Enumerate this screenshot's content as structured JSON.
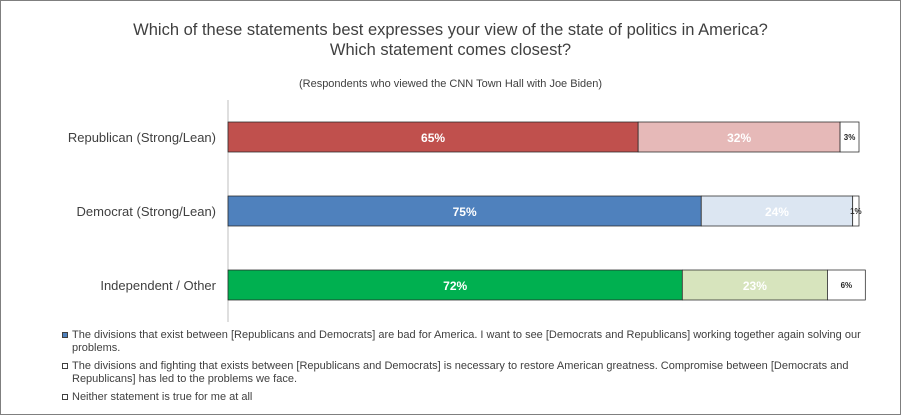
{
  "chart_data": {
    "type": "bar",
    "orientation": "horizontal",
    "stacked": true,
    "title_line1": "Which of these statements best expresses your view of the state of politics in America?",
    "title_line2": "Which statement comes closest?",
    "subtitle": "(Respondents who viewed the CNN Town Hall with Joe Biden)",
    "categories": [
      "Republican (Strong/Lean)",
      "Democrat (Strong/Lean)",
      "Independent / Other"
    ],
    "xlim": [
      0,
      100
    ],
    "grid": false,
    "legend_placement": "bottom",
    "series": [
      {
        "name": "The divisions that exist between [Republicans and Democrats] are bad for America. I want to see [Democrats and Republicans] working together again solving our problems.",
        "values": [
          65,
          75,
          72
        ]
      },
      {
        "name": "The divisions and fighting that exists between [Republicans and Democrats] is necessary to restore American greatness.  Compromise between [Democrats and Republicans] has led to the problems we face.",
        "values": [
          32,
          24,
          23
        ]
      },
      {
        "name": "Neither statement is true for me at all",
        "values": [
          3,
          1,
          6
        ]
      }
    ],
    "data_labels": [
      [
        "65%",
        "32%",
        "3%"
      ],
      [
        "75%",
        "24%",
        "1%"
      ],
      [
        "72%",
        "23%",
        "6%"
      ]
    ],
    "bar_colors": [
      [
        "#c0504d",
        "#e6b9b8",
        "#ffffff"
      ],
      [
        "#4f81bd",
        "#dce6f2",
        "#ffffff"
      ],
      [
        "#00b050",
        "#d7e4bd",
        "#ffffff"
      ]
    ],
    "legend_swatch_colors": [
      "#4f81bd",
      "#ffffff",
      "#ffffff"
    ]
  }
}
